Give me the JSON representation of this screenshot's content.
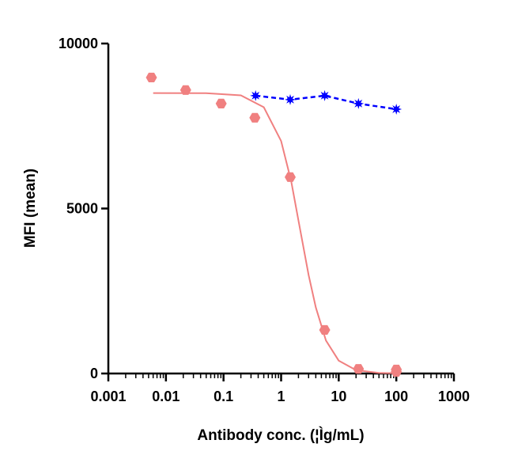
{
  "chart_data": {
    "type": "scatter",
    "x_label": "Antibody conc. (¦Ìg/mL)",
    "y_label": "MFI (mean)",
    "xscale": "log",
    "xlim": [
      0.001,
      1000
    ],
    "xticks": [
      0.001,
      0.01,
      0.1,
      1,
      10,
      100,
      1000
    ],
    "minor_ticks": true,
    "ylim": [
      0,
      10000
    ],
    "yticks": [
      0,
      5000,
      10000
    ],
    "series": [
      {
        "color": "#f08080",
        "marker": "hexagon",
        "line": "none",
        "x": [
          0.0056,
          0.022,
          0.091,
          0.35,
          1.44,
          5.7,
          22,
          100,
          100
        ],
        "values": [
          8970,
          8590,
          8180,
          7750,
          5950,
          1320,
          140,
          120,
          50
        ]
      },
      {
        "color": "#f08080",
        "marker": "none",
        "line": "solid",
        "x": [
          0.006,
          0.05,
          0.2,
          0.5,
          1,
          1.5,
          2,
          3,
          4,
          6,
          10,
          20,
          50,
          100
        ],
        "values": [
          8500,
          8496,
          8430,
          8070,
          7045,
          5820,
          4640,
          2980,
          2000,
          1000,
          390,
          100,
          16,
          4
        ]
      },
      {
        "color": "#0000ff",
        "marker": "star",
        "line": "dashed",
        "x": [
          0.36,
          1.44,
          5.7,
          22,
          100
        ],
        "values": [
          8420,
          8300,
          8420,
          8180,
          8010
        ]
      }
    ]
  }
}
